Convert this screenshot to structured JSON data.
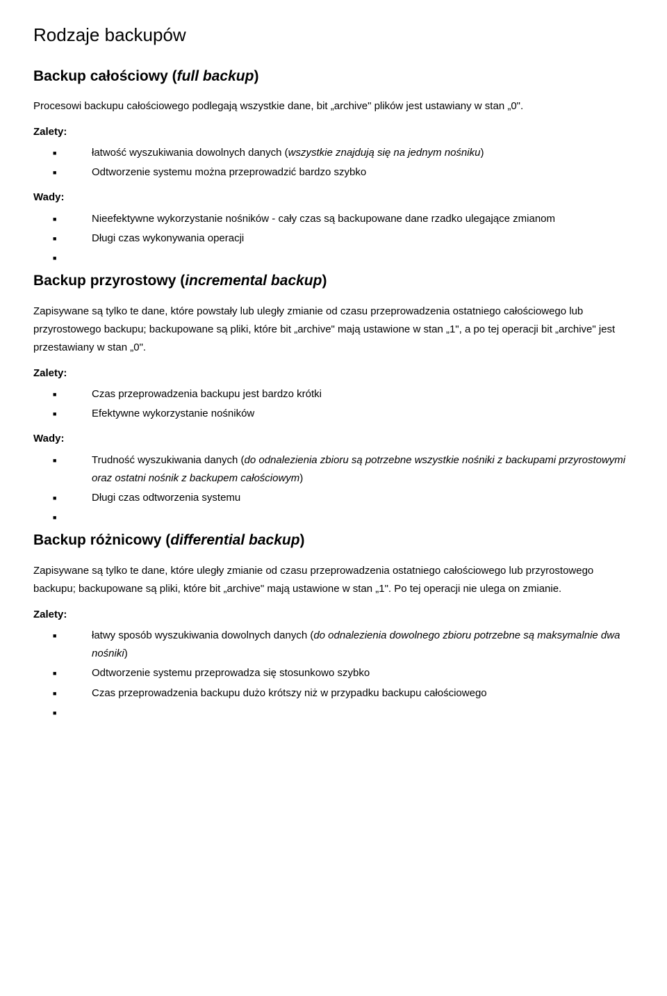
{
  "page": {
    "title": "Rodzaje backupów",
    "sections": [
      {
        "heading_pre": "Backup całościowy (",
        "heading_em": "full backup",
        "heading_post": ")",
        "intro": "Procesowi backupu całościowego podlegają wszystkie dane, bit „archive\" plików jest ustawiany w stan „0\".",
        "zalety_label": "Zalety:",
        "zalety": [
          {
            "pre": "łatwość wyszukiwania dowolnych danych (",
            "em": "wszystkie znajdują się na jednym nośniku",
            "post": ")"
          },
          {
            "pre": "Odtworzenie systemu można przeprowadzić bardzo szybko",
            "em": "",
            "post": ""
          }
        ],
        "wady_label": "Wady:",
        "wady": [
          {
            "pre": "Nieefektywne wykorzystanie nośników - cały czas są backupowane dane rzadko ulegające zmianom",
            "em": "",
            "post": ""
          },
          {
            "pre": "Długi czas wykonywania operacji",
            "em": "",
            "post": ""
          },
          {
            "pre": "",
            "em": "",
            "post": ""
          }
        ]
      },
      {
        "heading_pre": "Backup przyrostowy (",
        "heading_em": "incremental backup",
        "heading_post": ")",
        "intro": "Zapisywane są tylko te dane, które powstały lub uległy zmianie od czasu przeprowadzenia ostatniego całościowego lub przyrostowego backupu; backupowane są pliki, które bit „archive\" mają ustawione w stan „1\", a po tej operacji bit „archive\" jest przestawiany w stan „0\".",
        "zalety_label": "Zalety:",
        "zalety": [
          {
            "pre": "Czas przeprowadzenia backupu jest bardzo krótki",
            "em": "",
            "post": ""
          },
          {
            "pre": "Efektywne wykorzystanie nośników",
            "em": "",
            "post": ""
          }
        ],
        "wady_label": "Wady:",
        "wady": [
          {
            "pre": "Trudność wyszukiwania danych (",
            "em": "do odnalezienia zbioru są potrzebne wszystkie nośniki z backupami przyrostowymi oraz ostatni nośnik z backupem całościowym",
            "post": ")"
          },
          {
            "pre": "Długi czas odtworzenia systemu",
            "em": "",
            "post": ""
          },
          {
            "pre": "",
            "em": "",
            "post": ""
          }
        ]
      },
      {
        "heading_pre": "Backup różnicowy (",
        "heading_em": "differential backup",
        "heading_post": ")",
        "intro": "Zapisywane są tylko te dane, które uległy zmianie od czasu przeprowadzenia ostatniego całościowego lub przyrostowego backupu; backupowane są pliki, które bit „archive\" mają ustawione w stan „1\". Po tej operacji nie ulega on zmianie.",
        "zalety_label": "Zalety:",
        "zalety": [
          {
            "pre": "łatwy sposób wyszukiwania dowolnych danych (",
            "em": "do odnalezienia dowolnego zbioru potrzebne są maksymalnie dwa nośniki",
            "post": ")"
          },
          {
            "pre": "Odtworzenie systemu przeprowadza się stosunkowo szybko",
            "em": "",
            "post": ""
          },
          {
            "pre": "Czas przeprowadzenia backupu dużo krótszy niż w przypadku backupu całościowego",
            "em": "",
            "post": ""
          },
          {
            "pre": "",
            "em": "",
            "post": ""
          }
        ],
        "wady_label": "",
        "wady": []
      }
    ]
  },
  "style": {
    "background_color": "#ffffff",
    "text_color": "#000000",
    "h1_fontsize": 26,
    "h2_fontsize": 21,
    "body_fontsize": 15,
    "line_height": 1.75
  }
}
